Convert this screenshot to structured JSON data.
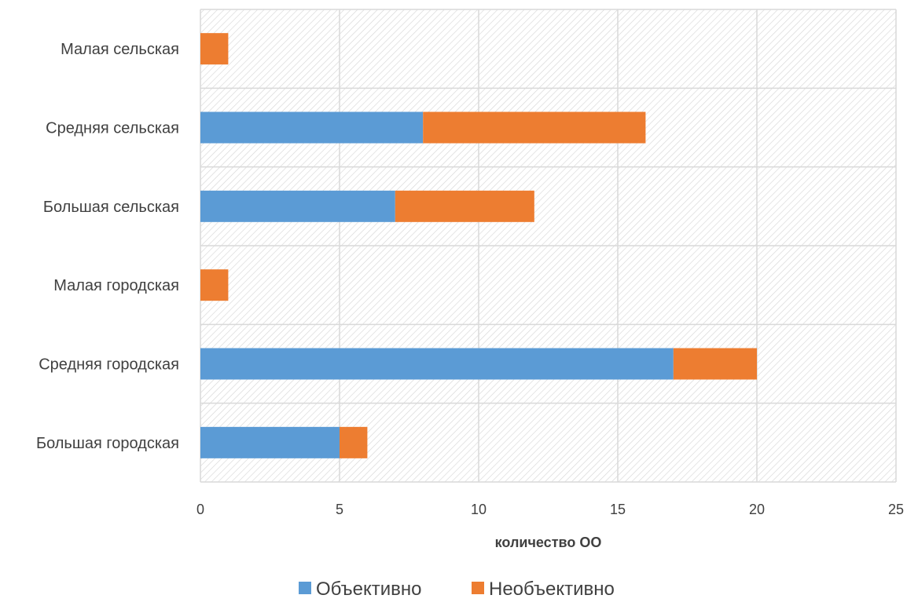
{
  "chart_data": {
    "type": "bar",
    "orientation": "horizontal",
    "stacked": true,
    "categories": [
      "Малая сельская",
      "Средняя сельская",
      "Большая сельская",
      "Малая городская",
      "Средняя городская",
      "Большая городская"
    ],
    "series": [
      {
        "name": "Объективно",
        "values": [
          0,
          8,
          7,
          0,
          17,
          5
        ],
        "color": "#5b9bd5"
      },
      {
        "name": "Необъективно",
        "values": [
          1,
          8,
          5,
          1,
          3,
          1
        ],
        "color": "#ed7d31"
      }
    ],
    "xlabel": "количество ОО",
    "ylabel": "",
    "xlim": [
      0,
      25
    ],
    "xticks": [
      "0",
      "5",
      "10",
      "15",
      "20",
      "25"
    ],
    "grid": true,
    "legend_position": "bottom"
  }
}
